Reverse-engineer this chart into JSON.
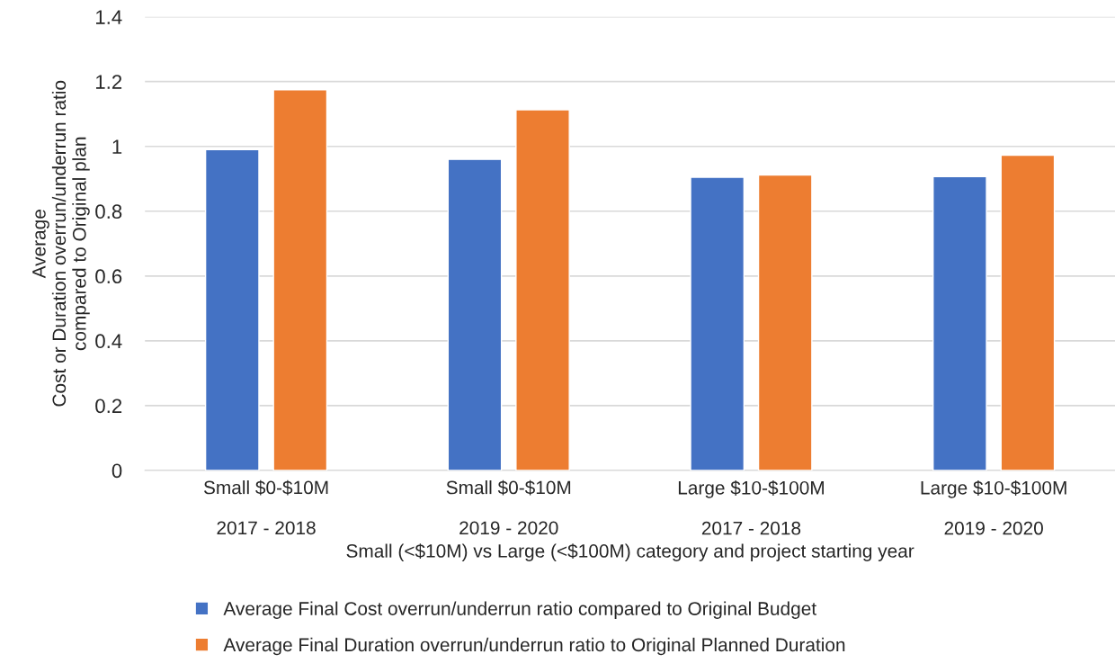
{
  "chart_data": {
    "type": "bar",
    "categories": [
      "Small $0-$10M\n\n2017 - 2018",
      "Small $0-$10M\n\n2019 - 2020",
      "Large $10-$100M\n\n2017 - 2018",
      "Large $10-$100M\n\n2019 - 2020"
    ],
    "series": [
      {
        "name": "Average Final Cost overrun/underrun ratio compared to Original Budget",
        "color": "#4472c4",
        "values": [
          0.99,
          0.96,
          0.905,
          0.907
        ]
      },
      {
        "name": "Average Final Duration overrun/underrun ratio to Original Planned Duration",
        "color": "#ed7d31",
        "values": [
          1.175,
          1.113,
          0.912,
          0.973
        ]
      }
    ],
    "xlabel": "Small (<$10M) vs Large (<$100M) category and project starting year",
    "ylabel": "Average\nCost or Duration overrun/underrun ratio\ncompared to Original plan",
    "ylim": [
      0,
      1.4
    ],
    "yticks": [
      0,
      0.2,
      0.4,
      0.6,
      0.8,
      1,
      1.2,
      1.4
    ],
    "grid": "y",
    "legend": "bottom"
  }
}
